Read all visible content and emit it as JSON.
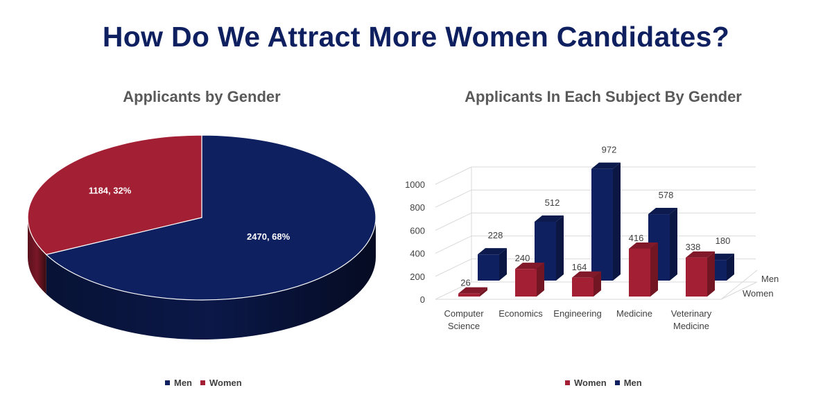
{
  "page_title": "How Do We Attract More Women Candidates?",
  "colors": {
    "men": "#0f2060",
    "women": "#a31f34",
    "title": "#0f2060",
    "subtitle": "#595959"
  },
  "chart_data": [
    {
      "type": "pie",
      "title": "Applicants by Gender",
      "slices": [
        {
          "name": "Men",
          "value": 2470,
          "percent": 68,
          "label": "2470, 68%",
          "color": "#0f2060"
        },
        {
          "name": "Women",
          "value": 1184,
          "percent": 32,
          "label": "1184, 32%",
          "color": "#a31f34"
        }
      ],
      "legend": [
        "Men",
        "Women"
      ],
      "legend_position": "bottom"
    },
    {
      "type": "bar",
      "style": "3d-clustered",
      "title": "Applicants In Each Subject By Gender",
      "categories": [
        "Computer Science",
        "Economics",
        "Engineering",
        "Medicine",
        "Veterinary Medicine"
      ],
      "category_labels": [
        [
          "Computer",
          "Science"
        ],
        [
          "Economics"
        ],
        [
          "Engineering"
        ],
        [
          "Medicine"
        ],
        [
          "Veterinary",
          "Medicine"
        ]
      ],
      "series": [
        {
          "name": "Women",
          "values": [
            26,
            240,
            164,
            416,
            338
          ],
          "color": "#a31f34"
        },
        {
          "name": "Men",
          "values": [
            228,
            512,
            972,
            578,
            180
          ],
          "color": "#0f2060"
        }
      ],
      "depth_labels": [
        "Men",
        "Women"
      ],
      "yticks": [
        0,
        200,
        400,
        600,
        800,
        1000
      ],
      "ylim": [
        0,
        1000
      ],
      "grid": true,
      "legend": [
        "Women",
        "Men"
      ],
      "legend_position": "bottom"
    }
  ]
}
